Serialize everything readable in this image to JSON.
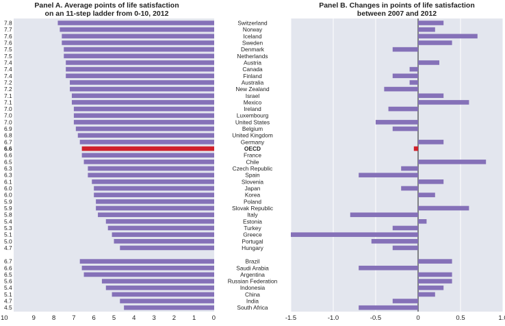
{
  "chart_data": [
    {
      "type": "bar",
      "orientation": "horizontal",
      "title_line1": "Panel A. Average points of life satisfaction",
      "title_line2": "on an 11-step ladder from 0-10, 2012",
      "xlim": [
        0,
        10
      ],
      "x_reversed": true,
      "x_ticks": [
        "10",
        "9",
        "8",
        "7",
        "6",
        "5",
        "4",
        "3",
        "2",
        "1",
        "0"
      ],
      "highlight_category": "OECD",
      "bar_color": "#8571b8",
      "highlight_color": "#d0202a",
      "group1": {
        "categories": [
          "Switzerland",
          "Norway",
          "Iceland",
          "Sweden",
          "Denmark",
          "Netherlands",
          "Austria",
          "Canada",
          "Finland",
          "Australia",
          "New Zealand",
          "Israel",
          "Mexico",
          "Ireland",
          "Luxembourg",
          "United States",
          "Belgium",
          "United Kingdom",
          "Germany",
          "OECD",
          "France",
          "Chile",
          "Czech Republic",
          "Spain",
          "Slovenia",
          "Japan",
          "Korea",
          "Poland",
          "Slovak Republic",
          "Italy",
          "Estonia",
          "Turkey",
          "Greece",
          "Portugal",
          "Hungary"
        ],
        "values": [
          7.8,
          7.7,
          7.6,
          7.6,
          7.5,
          7.5,
          7.4,
          7.4,
          7.4,
          7.2,
          7.2,
          7.1,
          7.1,
          7.0,
          7.0,
          7.0,
          6.9,
          6.8,
          6.7,
          6.6,
          6.6,
          6.5,
          6.3,
          6.3,
          6.1,
          6.0,
          6.0,
          5.9,
          5.9,
          5.8,
          5.4,
          5.3,
          5.1,
          5.0,
          4.7
        ],
        "labels": [
          "7.8",
          "7.7",
          "7.6",
          "7.6",
          "7.5",
          "7.5",
          "7.4",
          "7.4",
          "7.4",
          "7.2",
          "7.2",
          "7.1",
          "7.1",
          "7.0",
          "7.0",
          "7.0",
          "6.9",
          "6.8",
          "6.7",
          "6.6",
          "6.6",
          "6.5",
          "6.3",
          "6.3",
          "6.1",
          "6.0",
          "6.0",
          "5.9",
          "5.9",
          "5.8",
          "5.4",
          "5.3",
          "5.1",
          "5.0",
          "4.7"
        ]
      },
      "group2": {
        "categories": [
          "Brazil",
          "Saudi Arabia",
          "Argentina",
          "Russian Federation",
          "Indonesia",
          "China",
          "India",
          "South Africa"
        ],
        "values": [
          6.7,
          6.6,
          6.5,
          5.6,
          5.4,
          5.1,
          4.7,
          4.5
        ],
        "labels": [
          "6.7",
          "6.6",
          "6.5",
          "5.6",
          "5.4",
          "5.1",
          "4.7",
          "4.5"
        ]
      }
    },
    {
      "type": "bar",
      "orientation": "horizontal",
      "title_line1": "Panel B. Changes in points of life satisfaction",
      "title_line2": "between 2007 and 2012",
      "xlim": [
        -1.5,
        1.0
      ],
      "x_ticks": [
        "-1.5",
        "-1.0",
        "-0.5",
        "0",
        "0.5",
        "1.0"
      ],
      "x_tick_values": [
        -1.5,
        -1.0,
        -0.5,
        0,
        0.5,
        1.0
      ],
      "grid": true,
      "group1_values": [
        0.3,
        0.2,
        0.7,
        0.4,
        -0.3,
        0.0,
        0.25,
        -0.1,
        -0.3,
        -0.1,
        -0.4,
        0.3,
        0.6,
        -0.35,
        0.0,
        -0.5,
        -0.3,
        0.0,
        0.3,
        -0.05,
        0.0,
        0.8,
        -0.2,
        -0.7,
        0.3,
        -0.2,
        0.2,
        0.0,
        0.6,
        -0.8,
        0.1,
        -0.3,
        -1.5,
        -0.55,
        -0.3
      ],
      "group2_values": [
        0.4,
        -0.7,
        0.4,
        0.4,
        0.3,
        0.2,
        -0.3,
        -0.7
      ]
    }
  ]
}
